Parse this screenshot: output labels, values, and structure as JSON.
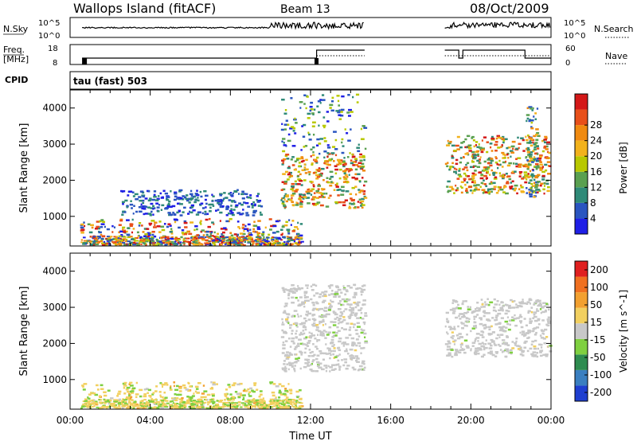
{
  "header": {
    "station": "Wallops Island (fitACF)",
    "beam": "Beam 13",
    "date": "08/Oct/2009"
  },
  "panel_labels": {
    "nsky": "N.Sky",
    "nsky_hi": "10^5",
    "nsky_lo": "10^0",
    "nsearch": "N.Search",
    "nsearch_hi": "10^5",
    "nsearch_lo": "10^0",
    "freq_line1": "Freq.",
    "freq_line2": "[MHz]",
    "freq_hi": "18",
    "freq_lo": "8",
    "nave": "Nave",
    "nave_hi": "60",
    "nave_lo": "0",
    "cpid": "CPID",
    "cpid_text": "tau (fast) 503"
  },
  "chart_data": [
    {
      "type": "heatmap",
      "title": "",
      "xlabel": "",
      "ylabel": "Slant Range [km]",
      "xlim": [
        "00:00",
        "24:00"
      ],
      "ylim": [
        180,
        4500
      ],
      "yticks": [
        1000,
        2000,
        3000,
        4000
      ],
      "colorbar": {
        "label": "Power [dB]",
        "ticks": [
          "4",
          "8",
          "12",
          "16",
          "20",
          "24",
          "28"
        ],
        "colors": [
          "#1f1fe6",
          "#2a55c0",
          "#2f8a78",
          "#5aa050",
          "#b8c800",
          "#f2b21c",
          "#f08a10",
          "#e8501a",
          "#d41818"
        ]
      },
      "regions": [
        {
          "t": [
            0.5,
            11.5
          ],
          "r": [
            180,
            900
          ],
          "level": "low-mixed"
        },
        {
          "t": [
            2.5,
            9.5
          ],
          "r": [
            1000,
            1700
          ],
          "level": "low"
        },
        {
          "t": [
            10.5,
            14.7
          ],
          "r": [
            1200,
            2700
          ],
          "level": "high"
        },
        {
          "t": [
            10.5,
            14.7
          ],
          "r": [
            2700,
            4400
          ],
          "level": "sparse"
        },
        {
          "t": [
            18.7,
            23.9
          ],
          "r": [
            1600,
            3200
          ],
          "level": "high"
        },
        {
          "t": [
            22.7,
            23.3
          ],
          "r": [
            1500,
            4000
          ],
          "level": "mid"
        }
      ]
    },
    {
      "type": "heatmap",
      "title": "",
      "xlabel": "Time UT",
      "ylabel": "Slant Range [km]",
      "xlim": [
        "00:00",
        "24:00"
      ],
      "ylim": [
        180,
        4500
      ],
      "yticks": [
        1000,
        2000,
        3000,
        4000
      ],
      "xticks": [
        "00:00",
        "04:00",
        "08:00",
        "12:00",
        "16:00",
        "20:00",
        "00:00"
      ],
      "colorbar": {
        "label": "Velocity [m s^-1]",
        "ticks": [
          "200",
          "100",
          "50",
          "15",
          "-15",
          "-50",
          "-100",
          "-200"
        ],
        "colors": [
          "#1f3fd0",
          "#3a7fc0",
          "#2e8c50",
          "#7fd040",
          "#c8c8c8",
          "#f2d060",
          "#f2a030",
          "#f07020",
          "#e02020"
        ]
      },
      "regions": [
        {
          "t": [
            0.5,
            11.5
          ],
          "r": [
            180,
            900
          ],
          "level": "low-velocity"
        },
        {
          "t": [
            10.5,
            14.7
          ],
          "r": [
            1200,
            3600
          ],
          "level": "ground-scatter"
        },
        {
          "t": [
            18.7,
            23.9
          ],
          "r": [
            1600,
            3200
          ],
          "level": "ground-scatter"
        }
      ]
    }
  ],
  "nsky_series": {
    "segments": [
      [
        0.6,
        14.7
      ],
      [
        18.7,
        24.0
      ]
    ],
    "gap": [
      14.7,
      18.7
    ]
  }
}
